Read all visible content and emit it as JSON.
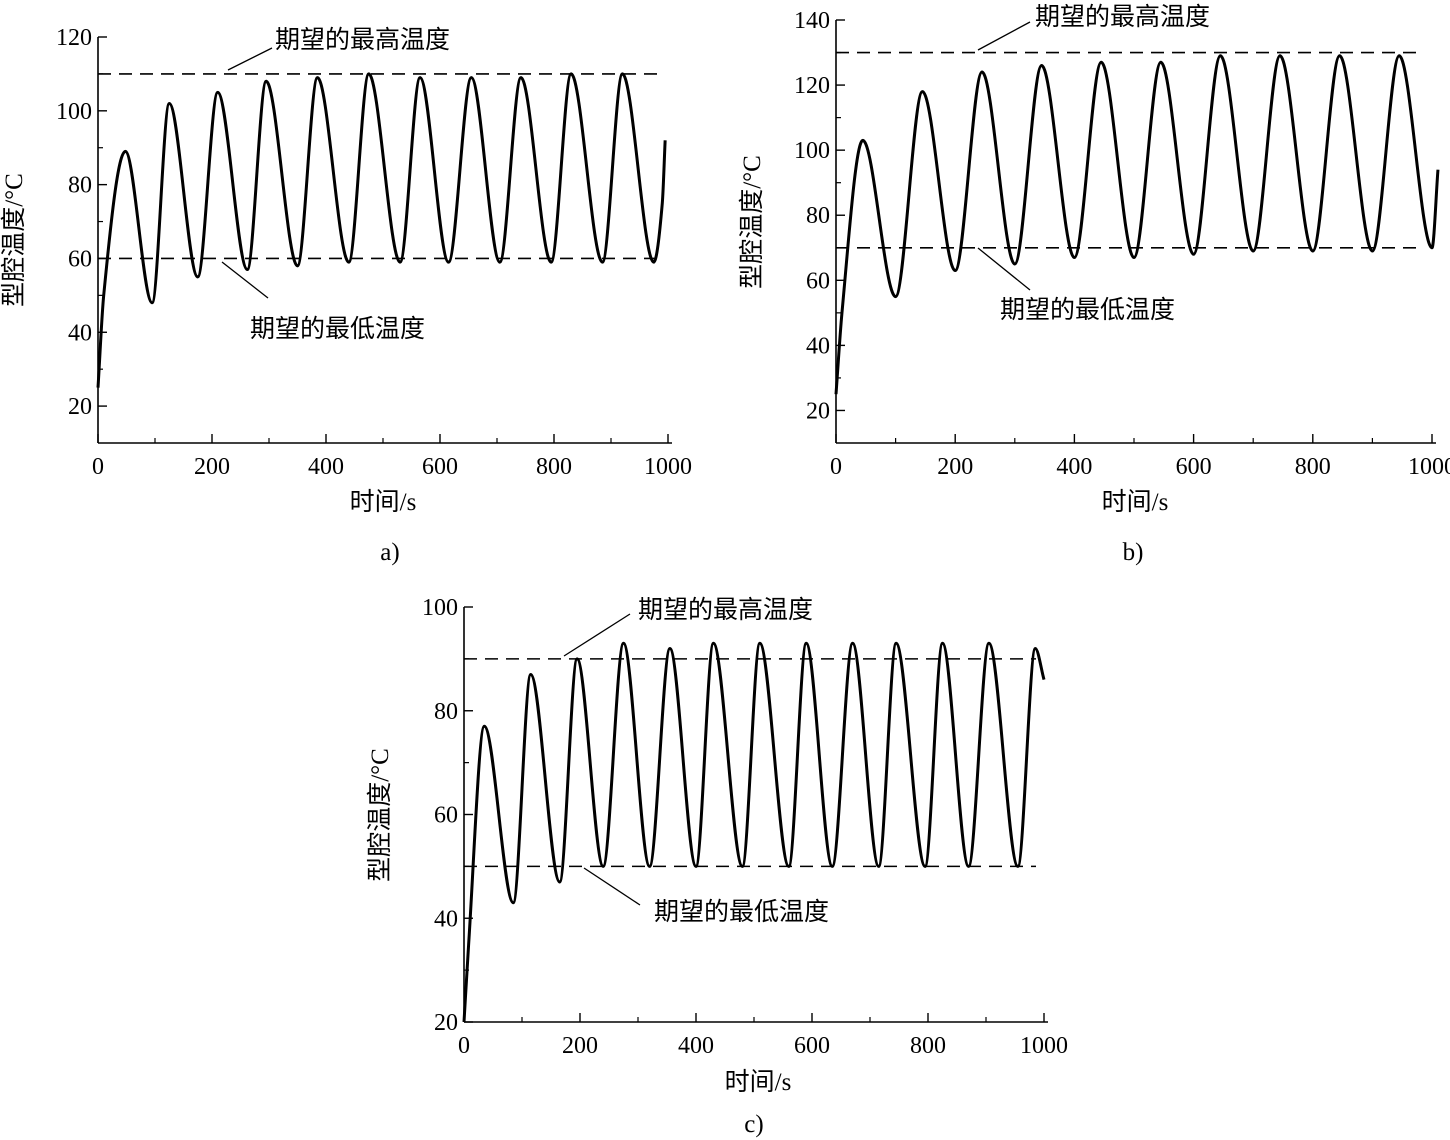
{
  "chart_data": [
    {
      "id": "a",
      "type": "line",
      "panel_label": "a)",
      "xlabel": "时间/s",
      "ylabel": "型腔温度/°C",
      "xlim": [
        0,
        1000
      ],
      "ylim": [
        10,
        120
      ],
      "xticks": [
        0,
        200,
        400,
        600,
        800,
        1000
      ],
      "yticks": [
        20,
        40,
        60,
        80,
        100,
        120
      ],
      "reference_lines": [
        {
          "name": "upper",
          "value": 110,
          "label": "期望的最高温度"
        },
        {
          "name": "lower",
          "value": 60,
          "label": "期望的最低温度"
        }
      ],
      "series": [
        {
          "x": [
            0,
            10,
            48,
            95,
            125,
            175,
            210,
            262,
            295,
            350,
            385,
            440,
            475,
            530,
            565,
            615,
            655,
            705,
            742,
            795,
            830,
            885,
            920,
            975,
            990,
            995
          ],
          "y": [
            25,
            50,
            89,
            48,
            102,
            55,
            105,
            57,
            108,
            58,
            109,
            59,
            110,
            59,
            109,
            59,
            109,
            59,
            109,
            59,
            110,
            59,
            110,
            59,
            75,
            92
          ]
        }
      ]
    },
    {
      "id": "b",
      "type": "line",
      "panel_label": "b)",
      "xlabel": "时间/s",
      "ylabel": "型腔温度/°C",
      "xlim": [
        0,
        1000
      ],
      "ylim": [
        10,
        140
      ],
      "xticks": [
        0,
        200,
        400,
        600,
        800,
        1000
      ],
      "yticks": [
        20,
        40,
        60,
        80,
        100,
        120,
        140
      ],
      "reference_lines": [
        {
          "name": "upper",
          "value": 130,
          "label": "期望的最高温度"
        },
        {
          "name": "lower",
          "value": 70,
          "label": "期望的最低温度"
        }
      ],
      "series": [
        {
          "x": [
            0,
            10,
            45,
            100,
            145,
            200,
            245,
            300,
            345,
            400,
            445,
            500,
            545,
            600,
            645,
            700,
            745,
            800,
            845,
            900,
            945,
            1000,
            1010
          ],
          "y": [
            25,
            50,
            103,
            55,
            118,
            63,
            124,
            65,
            126,
            67,
            127,
            67,
            127,
            68,
            129,
            69,
            129,
            69,
            129,
            69,
            129,
            70,
            94
          ]
        }
      ]
    },
    {
      "id": "c",
      "type": "line",
      "panel_label": "c)",
      "xlabel": "时间/s",
      "ylabel": "型腔温度/°C",
      "xlim": [
        0,
        1000
      ],
      "ylim": [
        20,
        100
      ],
      "xticks": [
        0,
        200,
        400,
        600,
        800,
        1000
      ],
      "yticks": [
        20,
        40,
        60,
        80,
        100
      ],
      "reference_lines": [
        {
          "name": "upper",
          "value": 90,
          "label": "期望的最高温度"
        },
        {
          "name": "lower",
          "value": 50,
          "label": "期望的最低温度"
        }
      ],
      "series": [
        {
          "x": [
            0,
            8,
            35,
            85,
            115,
            165,
            195,
            240,
            275,
            320,
            355,
            400,
            430,
            480,
            510,
            560,
            590,
            635,
            670,
            715,
            745,
            795,
            825,
            870,
            905,
            955,
            985,
            1000
          ],
          "y": [
            20,
            35,
            77,
            43,
            87,
            47,
            90,
            50,
            93,
            50,
            92,
            50,
            93,
            50,
            93,
            50,
            93,
            50,
            93,
            50,
            93,
            50,
            93,
            50,
            93,
            50,
            92,
            86
          ]
        }
      ]
    }
  ]
}
